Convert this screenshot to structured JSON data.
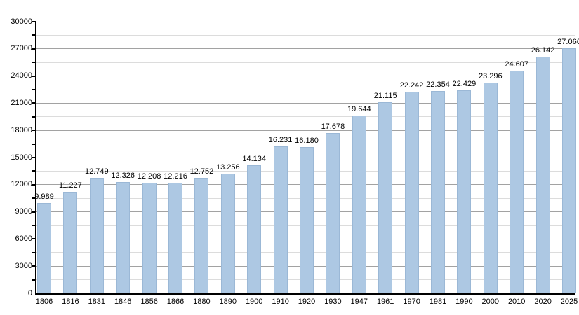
{
  "chart_data": {
    "type": "bar",
    "title": "",
    "xlabel": "",
    "ylabel": "",
    "categories": [
      "1806",
      "1816",
      "1831",
      "1846",
      "1856",
      "1866",
      "1880",
      "1890",
      "1900",
      "1910",
      "1920",
      "1930",
      "1947",
      "1961",
      "1970",
      "1981",
      "1990",
      "2000",
      "2010",
      "2020",
      "2025"
    ],
    "values": [
      9989,
      11227,
      12749,
      12326,
      12208,
      12216,
      12752,
      13256,
      14134,
      16231,
      16180,
      17678,
      19644,
      21115,
      22242,
      22354,
      22429,
      23296,
      24607,
      26142,
      27066
    ],
    "value_labels": [
      "9.989",
      "11.227",
      "12.749",
      "12.326",
      "12.208",
      "12.216",
      "12.752",
      "13.256",
      "14.134",
      "16.231",
      "16.180",
      "17.678",
      "19.644",
      "21.115",
      "22.242",
      "22.354",
      "22.429",
      "23.296",
      "24.607",
      "26.142",
      "27.066"
    ],
    "ylim": [
      0,
      30000
    ],
    "y_major_step": 3000,
    "y_minor_step": 1500,
    "y_tick_labels": [
      "0",
      "3000",
      "6000",
      "9000",
      "12000",
      "15000",
      "18000",
      "21000",
      "24000",
      "27000",
      "30000"
    ],
    "grid": true,
    "legend_position": "none",
    "colors": {
      "bar_fill": "#adc8e3",
      "bar_border": "#9bb8d6",
      "major_grid": "#a2a2a2",
      "minor_grid": "#dcdcdc",
      "axis": "#000000",
      "text": "#000000",
      "background": "#ffffff"
    }
  }
}
